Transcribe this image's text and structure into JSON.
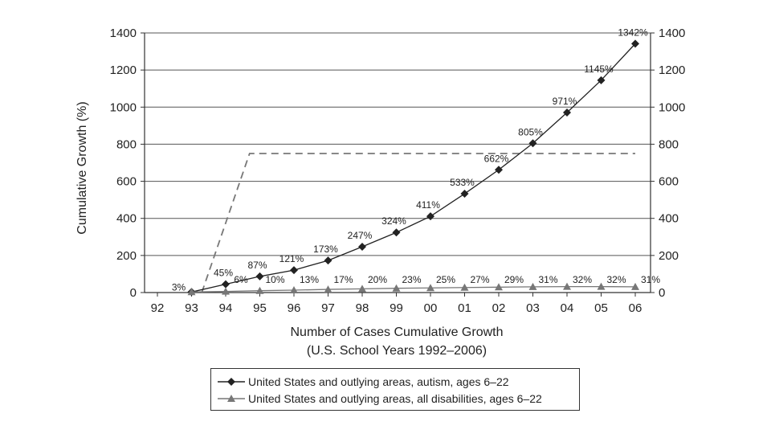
{
  "chart_data": {
    "type": "line",
    "ylabel": "Cumulative Growth (%)",
    "xlabel_line1": "Number of Cases Cumulative Growth",
    "xlabel_line2": "(U.S. School Years 1992–2006)",
    "categories": [
      "92",
      "93",
      "94",
      "95",
      "96",
      "97",
      "98",
      "99",
      "00",
      "01",
      "02",
      "03",
      "04",
      "05",
      "06"
    ],
    "ylim": [
      0,
      1400
    ],
    "yticks": [
      0,
      200,
      400,
      600,
      800,
      1000,
      1200,
      1400
    ],
    "grid": true,
    "legend_position": "bottom-center",
    "series": [
      {
        "name": "United States and outlying areas, autism, ages 6–22",
        "marker": "diamond",
        "color": "#222222",
        "values": [
          null,
          3,
          45,
          87,
          121,
          173,
          247,
          324,
          411,
          533,
          662,
          805,
          971,
          1145,
          1342
        ],
        "labels": [
          "",
          "3%",
          "45%",
          "87%",
          "121%",
          "173%",
          "247%",
          "324%",
          "411%",
          "533%",
          "662%",
          "805%",
          "971%",
          "1145%",
          "1342%"
        ]
      },
      {
        "name": "United States and outlying areas, all disabilities, ages 6–22",
        "marker": "triangle",
        "color": "#777777",
        "values": [
          null,
          3,
          6,
          10,
          13,
          17,
          20,
          23,
          25,
          27,
          29,
          31,
          32,
          32,
          31
        ],
        "labels": [
          "",
          "",
          "6%",
          "10%",
          "13%",
          "17%",
          "20%",
          "23%",
          "25%",
          "27%",
          "29%",
          "31%",
          "32%",
          "32%",
          "31%"
        ]
      }
    ],
    "annotation_line": {
      "style": "dashed",
      "color": "#777777",
      "points": [
        [
          1.3,
          0
        ],
        [
          2.7,
          750
        ],
        [
          14,
          750
        ]
      ]
    }
  }
}
